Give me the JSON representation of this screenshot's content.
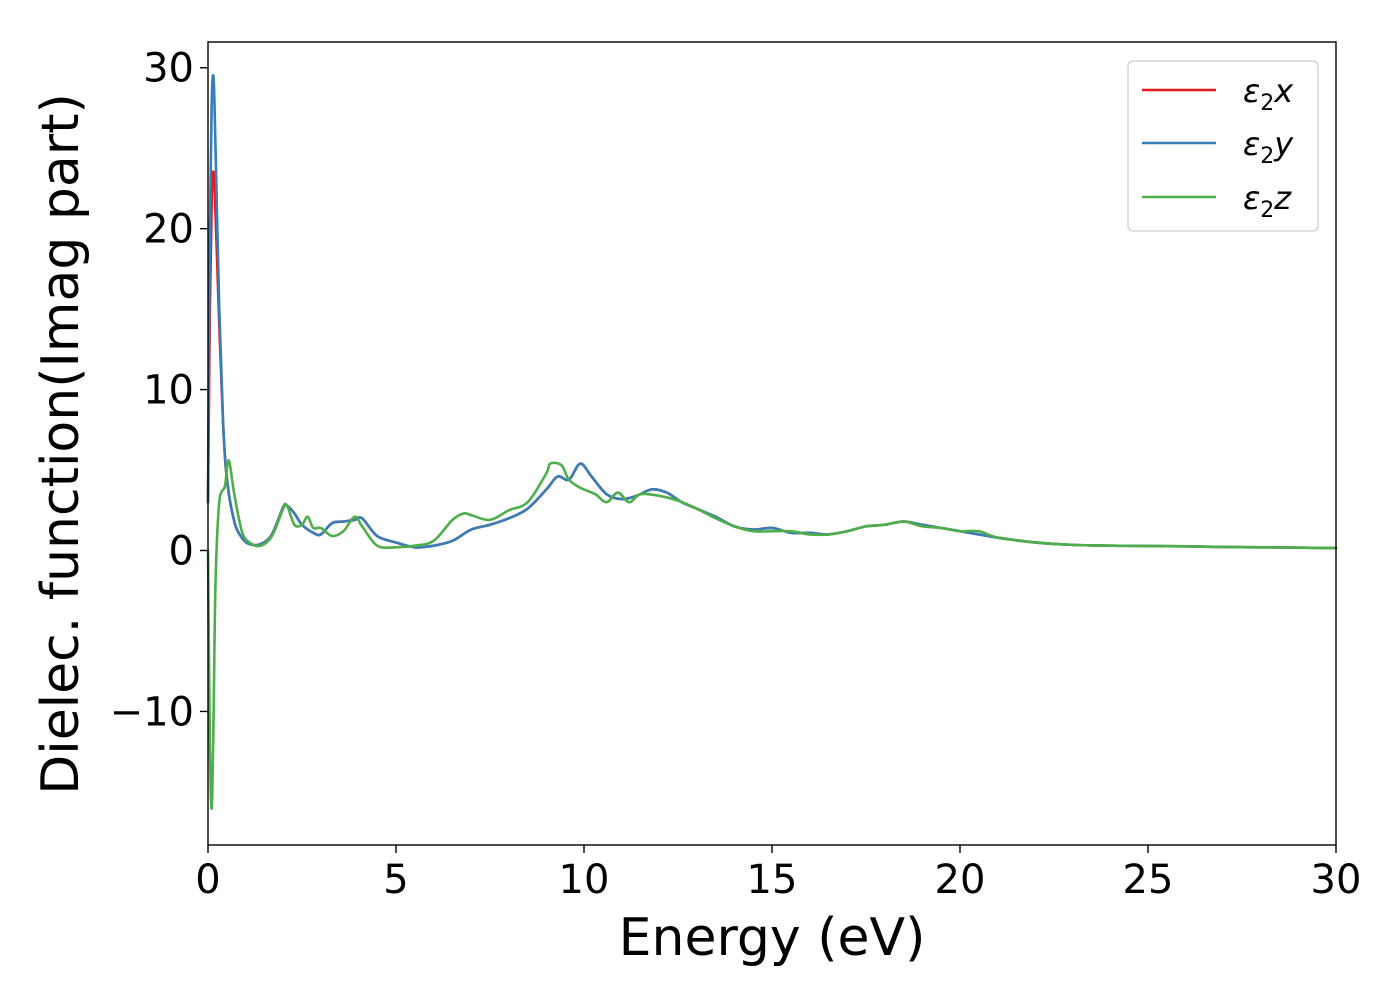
{
  "chart_data": {
    "type": "line",
    "xlabel": "Energy (eV)",
    "ylabel": "Dielec. function(Imag part)",
    "xlim": [
      0,
      30
    ],
    "ylim": [
      -18.3,
      31.6
    ],
    "xticks": [
      0,
      5,
      10,
      15,
      20,
      25,
      30
    ],
    "yticks": [
      -10,
      0,
      10,
      20,
      30
    ],
    "xtick_labels": [
      "0",
      "5",
      "10",
      "15",
      "20",
      "25",
      "30"
    ],
    "ytick_labels": [
      "−10",
      "0",
      "10",
      "20",
      "30"
    ],
    "grid": false,
    "legend_position": "top-right",
    "series": [
      {
        "name": "ε2x",
        "symbol": "ε",
        "subscript": "2",
        "suffix": "x",
        "color": "#e41a1c",
        "x": [
          0.0,
          0.05,
          0.1,
          0.15,
          0.2,
          0.3,
          0.4,
          0.5,
          0.7,
          0.9,
          1.1,
          1.4,
          1.7,
          2.0,
          2.1,
          2.3,
          2.5,
          2.8,
          3.0,
          3.3,
          3.6,
          3.9,
          4.1,
          4.5,
          5.0,
          5.5,
          6.0,
          6.5,
          7.0,
          7.5,
          8.0,
          8.5,
          9.0,
          9.3,
          9.6,
          9.9,
          10.2,
          10.6,
          11.0,
          11.4,
          11.8,
          12.2,
          12.6,
          13.0,
          13.5,
          14.0,
          14.5,
          15.0,
          15.5,
          16.0,
          16.5,
          17.0,
          17.5,
          18.0,
          18.5,
          19.0,
          19.5,
          20.0,
          20.5,
          21.0,
          22.0,
          23.0,
          24.0,
          25.0,
          26.0,
          27.0,
          28.0,
          29.0,
          30.0
        ],
        "values": [
          3.0,
          15.0,
          22.0,
          23.5,
          21.0,
          14.0,
          8.0,
          4.5,
          1.8,
          0.8,
          0.4,
          0.4,
          1.0,
          2.7,
          2.8,
          2.3,
          1.6,
          1.1,
          1.0,
          1.7,
          1.8,
          1.9,
          2.0,
          0.9,
          0.5,
          0.2,
          0.3,
          0.6,
          1.3,
          1.6,
          2.0,
          2.6,
          3.8,
          4.6,
          4.4,
          5.4,
          4.6,
          3.5,
          3.2,
          3.4,
          3.8,
          3.6,
          3.0,
          2.6,
          2.1,
          1.5,
          1.3,
          1.4,
          1.1,
          1.1,
          1.0,
          1.2,
          1.5,
          1.6,
          1.8,
          1.6,
          1.4,
          1.2,
          1.0,
          0.8,
          0.5,
          0.35,
          0.3,
          0.28,
          0.26,
          0.22,
          0.2,
          0.18,
          0.15
        ]
      },
      {
        "name": "ε2y",
        "symbol": "ε",
        "subscript": "2",
        "suffix": "y",
        "color": "#377eb8",
        "x": [
          0.0,
          0.05,
          0.1,
          0.15,
          0.2,
          0.3,
          0.4,
          0.5,
          0.7,
          0.9,
          1.1,
          1.4,
          1.7,
          2.0,
          2.1,
          2.3,
          2.5,
          2.8,
          3.0,
          3.3,
          3.6,
          3.9,
          4.1,
          4.5,
          5.0,
          5.5,
          6.0,
          6.5,
          7.0,
          7.5,
          8.0,
          8.5,
          9.0,
          9.3,
          9.6,
          9.9,
          10.2,
          10.6,
          11.0,
          11.4,
          11.8,
          12.2,
          12.6,
          13.0,
          13.5,
          14.0,
          14.5,
          15.0,
          15.5,
          16.0,
          16.5,
          17.0,
          17.5,
          18.0,
          18.5,
          19.0,
          19.5,
          20.0,
          20.5,
          21.0,
          22.0,
          23.0,
          24.0,
          25.0,
          26.0,
          27.0,
          28.0,
          29.0,
          30.0
        ],
        "values": [
          3.0,
          20.0,
          28.0,
          29.3,
          25.0,
          15.0,
          8.0,
          4.5,
          1.8,
          0.8,
          0.4,
          0.4,
          1.0,
          2.7,
          2.8,
          2.3,
          1.6,
          1.1,
          1.0,
          1.7,
          1.8,
          1.9,
          2.0,
          0.9,
          0.5,
          0.2,
          0.3,
          0.6,
          1.3,
          1.6,
          2.0,
          2.6,
          3.8,
          4.6,
          4.4,
          5.4,
          4.6,
          3.5,
          3.2,
          3.4,
          3.8,
          3.6,
          3.0,
          2.6,
          2.1,
          1.5,
          1.3,
          1.4,
          1.1,
          1.1,
          1.0,
          1.2,
          1.5,
          1.6,
          1.8,
          1.6,
          1.4,
          1.2,
          1.0,
          0.8,
          0.5,
          0.35,
          0.3,
          0.28,
          0.26,
          0.22,
          0.2,
          0.18,
          0.15
        ]
      },
      {
        "name": "ε2z",
        "symbol": "ε",
        "subscript": "2",
        "suffix": "z",
        "color": "#4daf4a",
        "x": [
          0.0,
          0.05,
          0.1,
          0.15,
          0.2,
          0.3,
          0.45,
          0.55,
          0.7,
          0.9,
          1.1,
          1.4,
          1.7,
          2.0,
          2.1,
          2.3,
          2.5,
          2.65,
          2.8,
          3.0,
          3.3,
          3.6,
          3.9,
          4.1,
          4.5,
          5.0,
          5.5,
          6.0,
          6.5,
          6.8,
          7.0,
          7.5,
          8.0,
          8.5,
          9.0,
          9.1,
          9.4,
          9.6,
          9.9,
          10.3,
          10.6,
          10.9,
          11.2,
          11.5,
          12.0,
          12.5,
          13.0,
          13.5,
          14.0,
          14.5,
          15.0,
          15.5,
          16.0,
          16.5,
          17.0,
          17.5,
          18.0,
          18.5,
          19.0,
          19.5,
          20.0,
          20.5,
          21.0,
          22.0,
          23.0,
          24.0,
          25.0,
          26.0,
          27.0,
          28.0,
          29.0,
          30.0
        ],
        "values": [
          0.0,
          -12.0,
          -16.0,
          -10.0,
          -2.0,
          3.0,
          4.0,
          5.6,
          3.5,
          1.2,
          0.5,
          0.3,
          0.9,
          2.6,
          2.8,
          1.6,
          1.6,
          2.1,
          1.4,
          1.4,
          0.9,
          1.2,
          2.1,
          1.5,
          0.3,
          0.2,
          0.3,
          0.6,
          1.9,
          2.3,
          2.2,
          1.9,
          2.5,
          3.0,
          4.8,
          5.4,
          5.3,
          4.4,
          3.9,
          3.5,
          3.0,
          3.6,
          3.0,
          3.5,
          3.4,
          3.1,
          2.6,
          2.0,
          1.5,
          1.2,
          1.2,
          1.2,
          1.0,
          1.0,
          1.2,
          1.5,
          1.6,
          1.8,
          1.5,
          1.4,
          1.2,
          1.2,
          0.8,
          0.5,
          0.35,
          0.3,
          0.28,
          0.26,
          0.22,
          0.2,
          0.18,
          0.15
        ]
      }
    ]
  }
}
